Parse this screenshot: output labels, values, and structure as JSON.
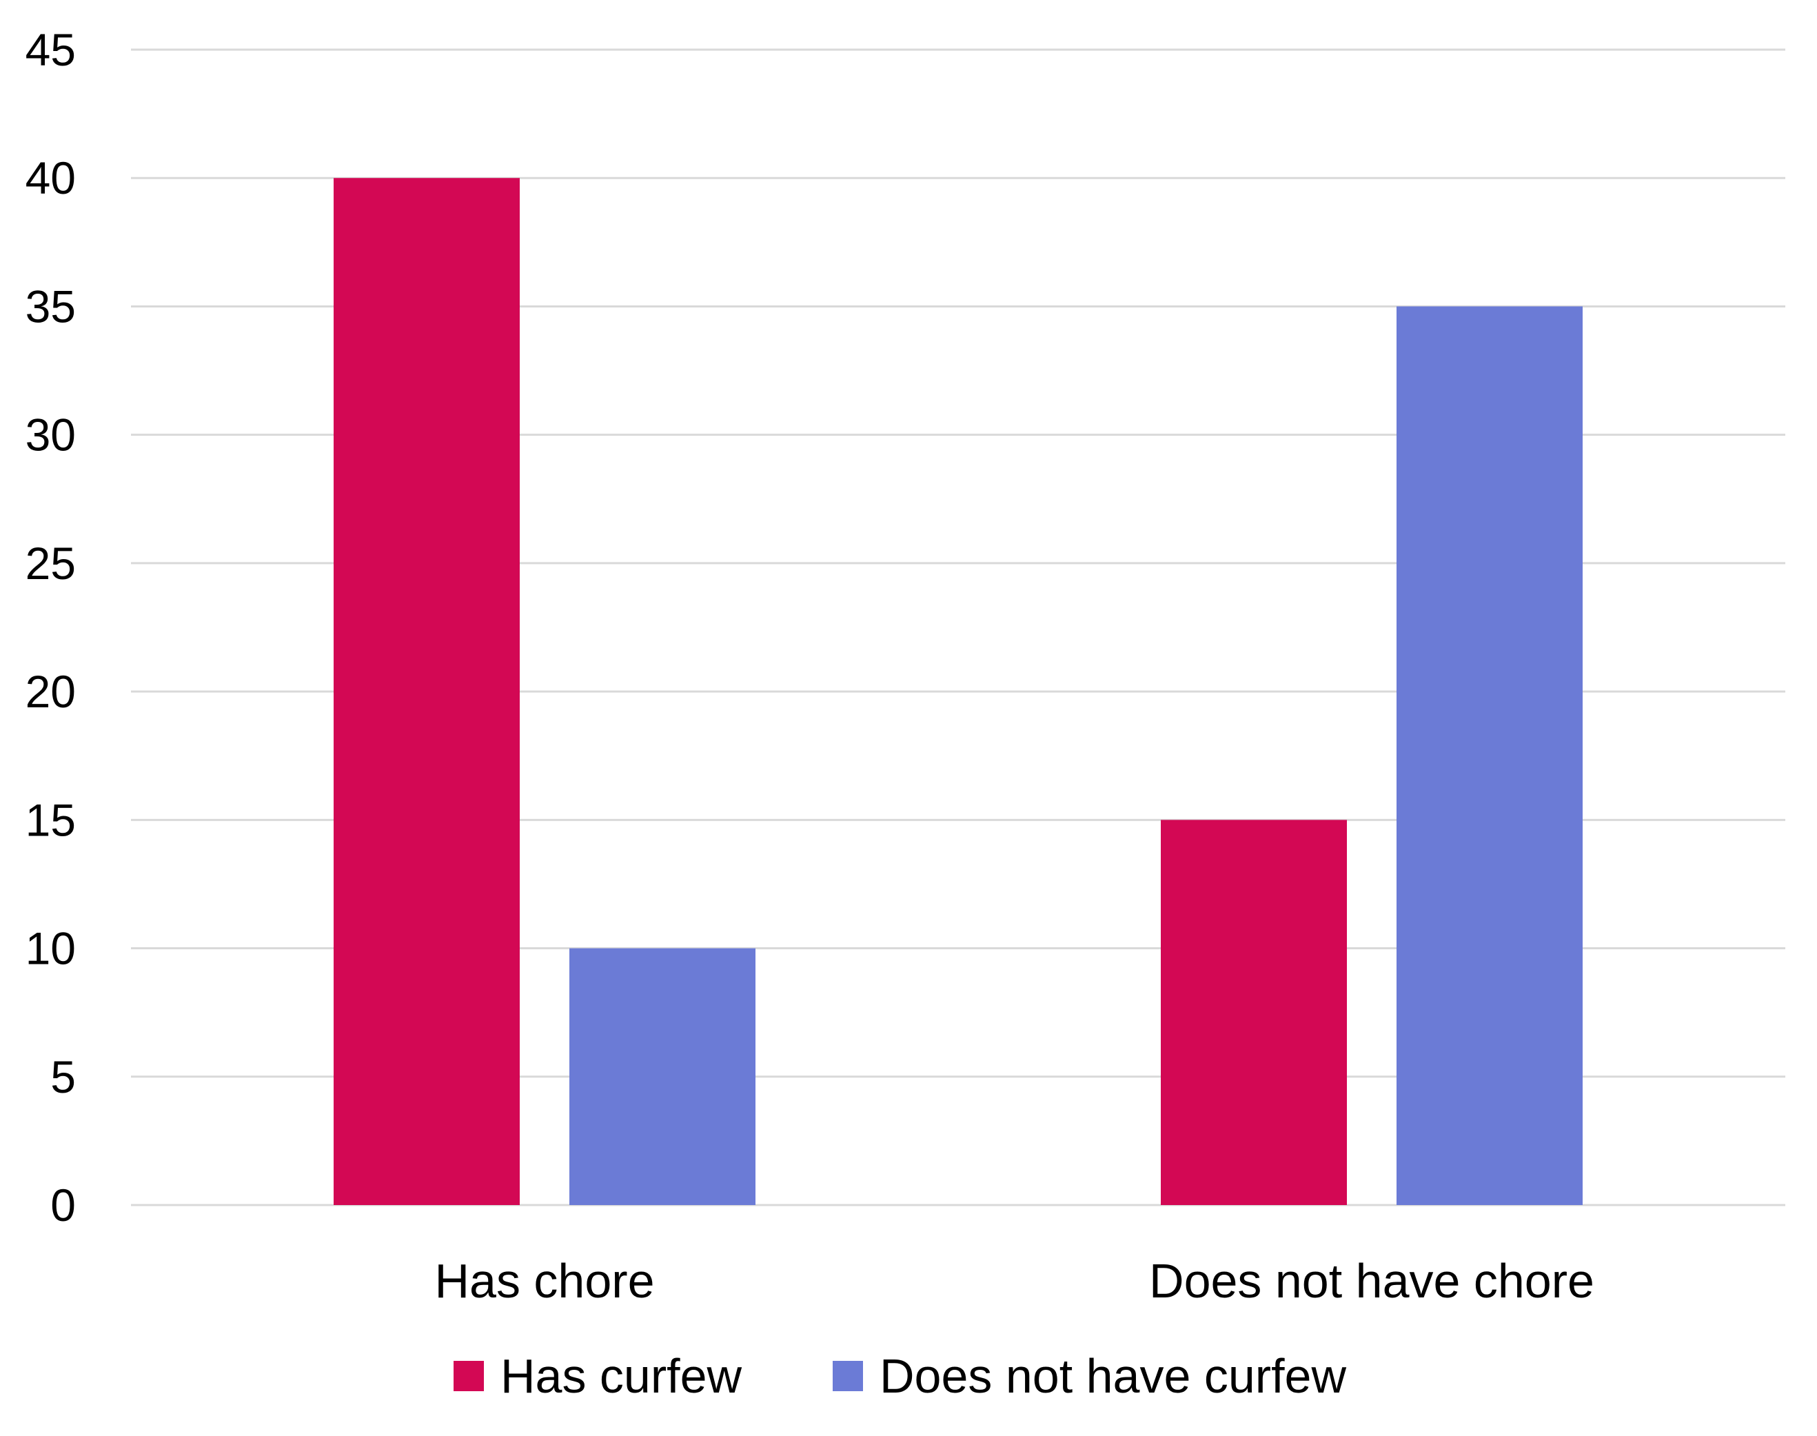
{
  "chart_data": {
    "type": "bar",
    "categories": [
      "Has chore",
      "Does not have chore"
    ],
    "series": [
      {
        "name": "Has curfew",
        "values": [
          40,
          15
        ],
        "color": "#d30854"
      },
      {
        "name": "Does not have curfew",
        "values": [
          10,
          35
        ],
        "color": "#6b7bd6"
      }
    ],
    "ylim": [
      0,
      45
    ],
    "yticks": [
      0,
      5,
      10,
      15,
      20,
      25,
      30,
      35,
      40,
      45
    ],
    "grid": true,
    "legend_position": "bottom"
  }
}
